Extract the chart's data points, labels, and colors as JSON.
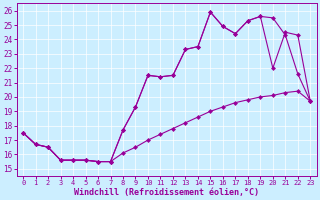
{
  "xlabel": "Windchill (Refroidissement éolien,°C)",
  "bg_color": "#cceeff",
  "line_color": "#990099",
  "xlim": [
    -0.5,
    23.5
  ],
  "ylim": [
    14.5,
    26.5
  ],
  "xticks": [
    0,
    1,
    2,
    3,
    4,
    5,
    6,
    7,
    8,
    9,
    10,
    11,
    12,
    13,
    14,
    15,
    16,
    17,
    18,
    19,
    20,
    21,
    22,
    23
  ],
  "yticks": [
    15,
    16,
    17,
    18,
    19,
    20,
    21,
    22,
    23,
    24,
    25,
    26
  ],
  "line1_x": [
    0,
    1,
    2,
    3,
    4,
    5,
    6,
    7,
    8,
    9,
    10,
    11,
    12,
    13,
    14,
    15,
    16,
    17,
    18,
    19,
    20,
    21,
    22,
    23
  ],
  "line1_y": [
    17.5,
    16.7,
    16.5,
    15.6,
    15.6,
    15.6,
    15.5,
    15.5,
    17.7,
    19.3,
    21.5,
    21.4,
    21.5,
    23.3,
    23.5,
    25.9,
    24.9,
    24.4,
    25.3,
    25.6,
    25.5,
    24.3,
    21.6,
    19.7
  ],
  "line2_x": [
    0,
    1,
    2,
    3,
    4,
    5,
    6,
    7,
    8,
    9,
    10,
    11,
    12,
    13,
    14,
    15,
    16,
    17,
    18,
    19,
    20,
    21,
    22,
    23
  ],
  "line2_y": [
    17.5,
    16.7,
    16.5,
    15.6,
    15.6,
    15.6,
    15.5,
    15.5,
    16.1,
    16.5,
    17.0,
    17.4,
    17.8,
    18.2,
    18.6,
    19.0,
    19.3,
    19.6,
    19.8,
    20.0,
    20.1,
    20.3,
    20.4,
    19.7
  ],
  "line3_x": [
    0,
    1,
    2,
    3,
    4,
    5,
    6,
    7,
    8,
    9,
    10,
    11,
    12,
    13,
    14,
    15,
    16,
    17,
    18,
    19,
    20,
    21,
    22,
    23
  ],
  "line3_y": [
    17.5,
    16.7,
    16.5,
    15.6,
    15.6,
    15.6,
    15.5,
    15.5,
    17.7,
    19.3,
    21.5,
    21.4,
    21.5,
    23.3,
    23.5,
    25.9,
    24.9,
    24.4,
    25.3,
    25.6,
    22.0,
    24.5,
    24.3,
    19.7
  ],
  "grid_color": "#ffffff",
  "marker": "D",
  "markersize": 2.5,
  "linewidth": 0.8,
  "tick_fontsize": 5.5,
  "xlabel_fontsize": 6.0
}
